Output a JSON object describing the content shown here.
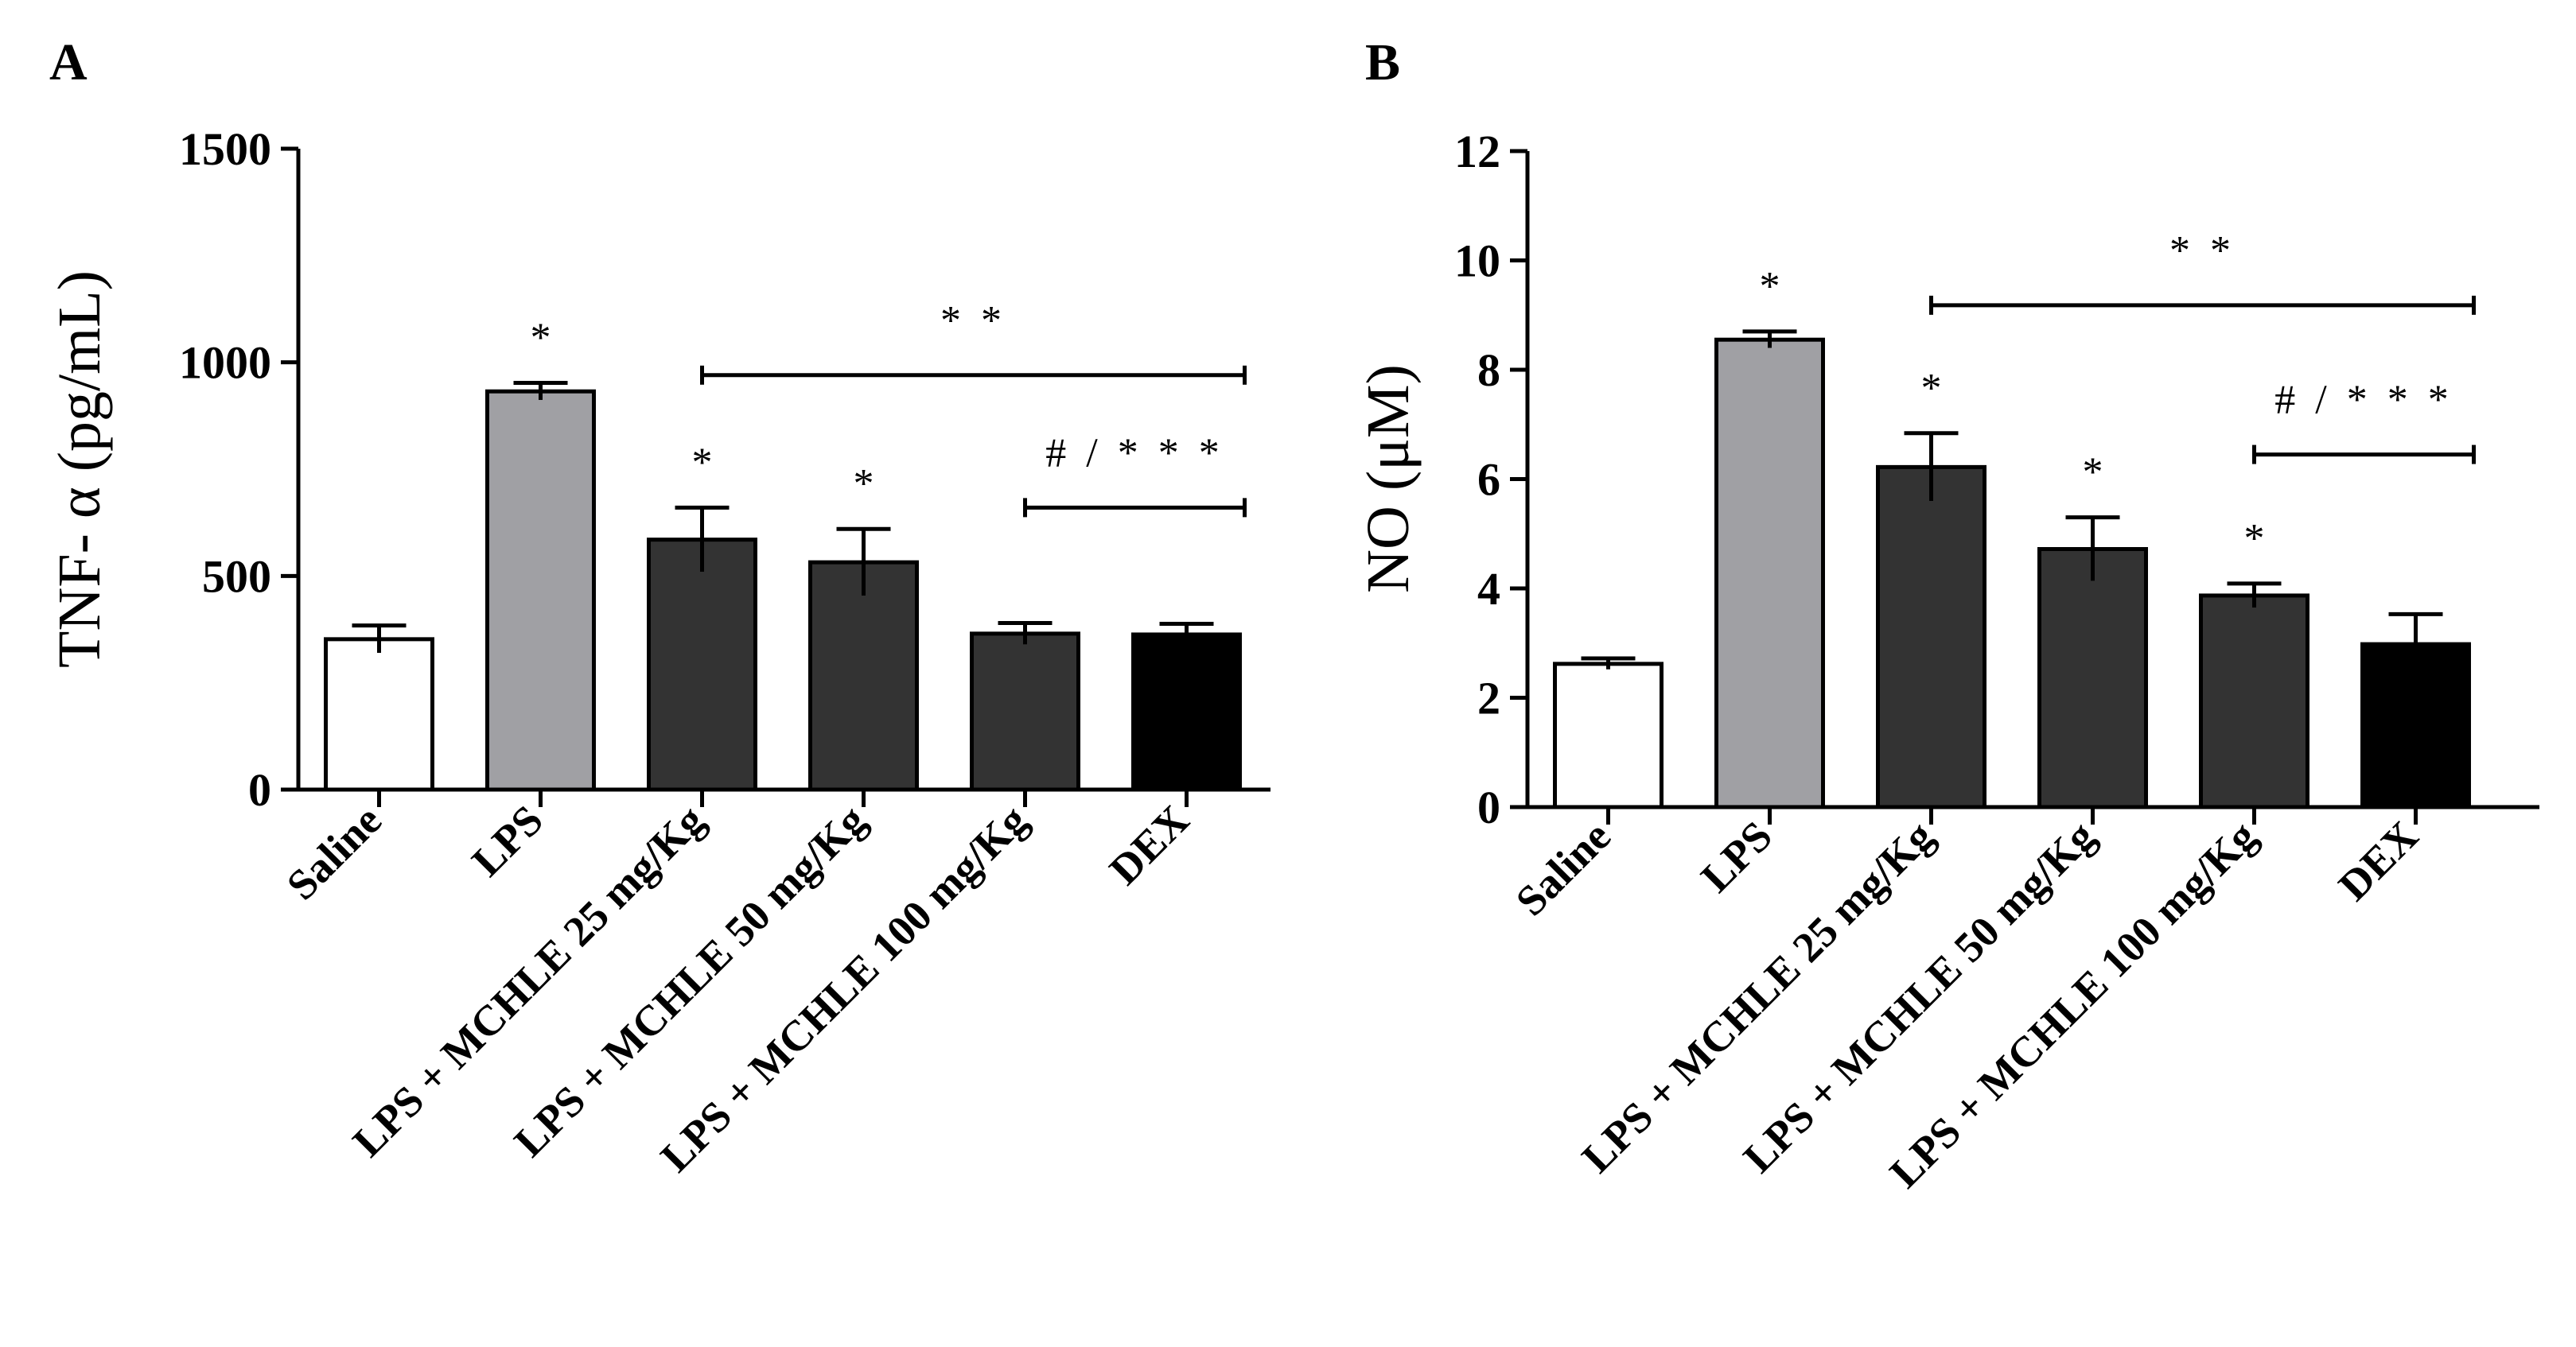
{
  "chart_data": [
    {
      "panel": "A",
      "type": "bar",
      "ylabel": "TNF- α (pg/mL)",
      "ylim": [
        0,
        1500
      ],
      "yticks": [
        0,
        500,
        1000,
        1500
      ],
      "categories": [
        "Saline",
        "LPS",
        "LPS + MCHLE 25 mg/Kg",
        "LPS + MCHLE 50 mg/Kg",
        "LPS + MCHLE 100 mg/Kg",
        "DEX"
      ],
      "values": [
        352,
        932,
        585,
        532,
        365,
        363
      ],
      "errors": [
        32,
        20,
        75,
        78,
        25,
        25
      ],
      "bar_colors": [
        "#ffffff",
        "#a0a0a4",
        "#333333",
        "#333333",
        "#333333",
        "#000000"
      ],
      "bar_stars": [
        "",
        "*",
        "*",
        "*",
        "",
        ""
      ],
      "brackets": [
        {
          "from": 2,
          "to": 5,
          "level": 970,
          "label": "* *"
        },
        {
          "from": 4,
          "to": 5,
          "level": 660,
          "label": "# / * * *"
        }
      ]
    },
    {
      "panel": "B",
      "type": "bar",
      "ylabel": "NO (μM)",
      "ylim": [
        0,
        12
      ],
      "yticks": [
        0,
        2,
        4,
        6,
        8,
        10,
        12
      ],
      "categories": [
        "Saline",
        "LPS",
        "LPS + MCHLE 25 mg/Kg",
        "LPS + MCHLE 50 mg/Kg",
        "LPS + MCHLE 100 mg/Kg",
        "DEX"
      ],
      "values": [
        2.62,
        8.55,
        6.22,
        4.72,
        3.87,
        2.98
      ],
      "errors": [
        0.1,
        0.15,
        0.62,
        0.58,
        0.22,
        0.55
      ],
      "bar_colors": [
        "#ffffff",
        "#a0a0a4",
        "#333333",
        "#333333",
        "#333333",
        "#000000"
      ],
      "bar_stars": [
        "",
        "*",
        "*",
        "*",
        "*",
        ""
      ],
      "brackets": [
        {
          "from": 2,
          "to": 5,
          "level": 9.18,
          "label": "* *"
        },
        {
          "from": 4,
          "to": 5,
          "level": 6.45,
          "label": "# / * * *"
        }
      ]
    }
  ]
}
